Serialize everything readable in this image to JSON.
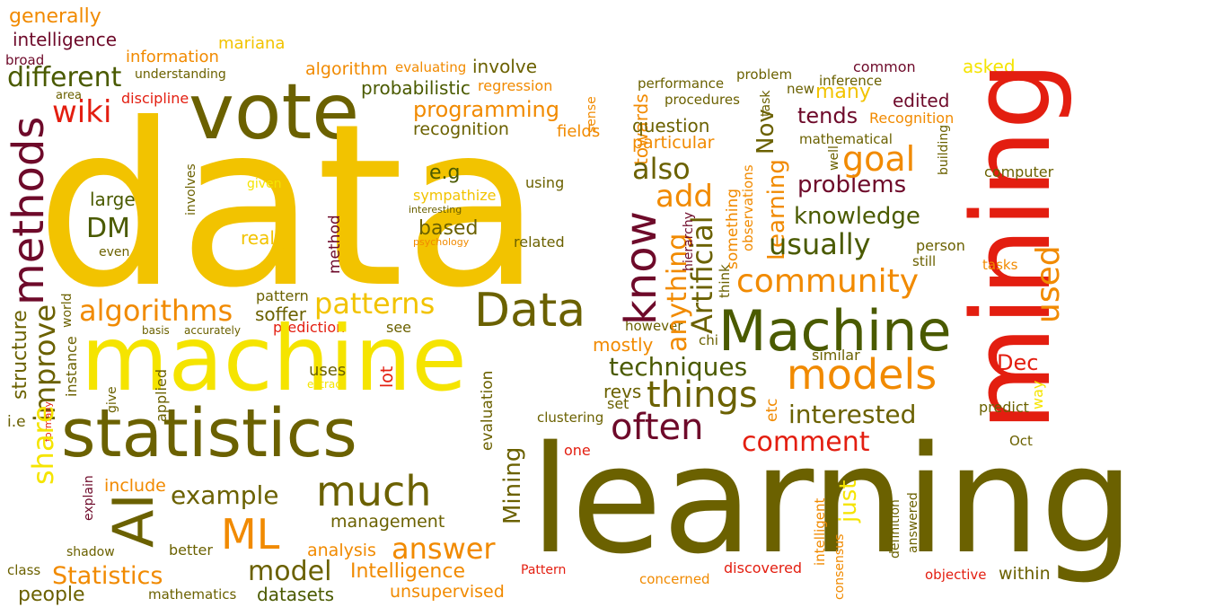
{
  "colors": {
    "gold": "#f2c300",
    "yellow": "#f5e400",
    "olive": "#6b6100",
    "dark_olive": "#4a5a00",
    "orange": "#f18a00",
    "red": "#e31e10",
    "maroon": "#6e0a2a",
    "brown": "#8a5a00"
  },
  "words": [
    {
      "text": "generally"
    },
    {
      "text": "intelligence"
    },
    {
      "text": "broad"
    },
    {
      "text": "different"
    },
    {
      "text": "area"
    },
    {
      "text": "understanding"
    },
    {
      "text": "information"
    },
    {
      "text": "mariana"
    },
    {
      "text": "algorithm"
    },
    {
      "text": "evaluating"
    },
    {
      "text": "involve"
    },
    {
      "text": "regression"
    },
    {
      "text": "probabilistic"
    },
    {
      "text": "discipline"
    },
    {
      "text": "wiki"
    },
    {
      "text": "vote"
    },
    {
      "text": "programming"
    },
    {
      "text": "recognition"
    },
    {
      "text": "fields"
    },
    {
      "text": "sense"
    },
    {
      "text": "methods"
    },
    {
      "text": "data"
    },
    {
      "text": "e.g"
    },
    {
      "text": "given"
    },
    {
      "text": "using"
    },
    {
      "text": "sympathize"
    },
    {
      "text": "interesting"
    },
    {
      "text": "large"
    },
    {
      "text": "involves"
    },
    {
      "text": "DM"
    },
    {
      "text": "even"
    },
    {
      "text": "really"
    },
    {
      "text": "based"
    },
    {
      "text": "psychology"
    },
    {
      "text": "related"
    },
    {
      "text": "method"
    },
    {
      "text": "algorithms"
    },
    {
      "text": "patterns"
    },
    {
      "text": "Data"
    },
    {
      "text": "pattern"
    },
    {
      "text": "soffer"
    },
    {
      "text": "world"
    },
    {
      "text": "basis"
    },
    {
      "text": "accurately"
    },
    {
      "text": "prediction"
    },
    {
      "text": "see"
    },
    {
      "text": "structure"
    },
    {
      "text": "instance"
    },
    {
      "text": "machine"
    },
    {
      "text": "uses"
    },
    {
      "text": "extract"
    },
    {
      "text": "lot"
    },
    {
      "text": "improve"
    },
    {
      "text": "give"
    },
    {
      "text": "applied"
    },
    {
      "text": "formally"
    },
    {
      "text": "statistics"
    },
    {
      "text": "evaluation"
    },
    {
      "text": "i.e"
    },
    {
      "text": "share"
    },
    {
      "text": "include"
    },
    {
      "text": "example"
    },
    {
      "text": "much"
    },
    {
      "text": "AI"
    },
    {
      "text": "explain"
    },
    {
      "text": "ML"
    },
    {
      "text": "management"
    },
    {
      "text": "Mining"
    },
    {
      "text": "better"
    },
    {
      "text": "shadow"
    },
    {
      "text": "analysis"
    },
    {
      "text": "answer"
    },
    {
      "text": "class"
    },
    {
      "text": "Statistics"
    },
    {
      "text": "model"
    },
    {
      "text": "Intelligence"
    },
    {
      "text": "people"
    },
    {
      "text": "mathematics"
    },
    {
      "text": "datasets"
    },
    {
      "text": "unsupervised"
    },
    {
      "text": "Pattern"
    },
    {
      "text": "concerned"
    },
    {
      "text": "discovered"
    },
    {
      "text": "objective"
    },
    {
      "text": "within"
    },
    {
      "text": "learning"
    },
    {
      "text": "one"
    },
    {
      "text": "clustering"
    },
    {
      "text": "set"
    },
    {
      "text": "revs"
    },
    {
      "text": "often"
    },
    {
      "text": "things"
    },
    {
      "text": "techniques"
    },
    {
      "text": "mostly"
    },
    {
      "text": "however"
    },
    {
      "text": "anything"
    },
    {
      "text": "know"
    },
    {
      "text": "towards"
    },
    {
      "text": "also"
    },
    {
      "text": "particular"
    },
    {
      "text": "question"
    },
    {
      "text": "procedures"
    },
    {
      "text": "performance"
    },
    {
      "text": "problem"
    },
    {
      "text": "new"
    },
    {
      "text": "task"
    },
    {
      "text": "Nov"
    },
    {
      "text": "add"
    },
    {
      "text": "Artificial"
    },
    {
      "text": "hierarchy"
    },
    {
      "text": "something"
    },
    {
      "text": "observations"
    },
    {
      "text": "Learning"
    },
    {
      "text": "think"
    },
    {
      "text": "chi"
    },
    {
      "text": "Machine"
    },
    {
      "text": "community"
    },
    {
      "text": "usually"
    },
    {
      "text": "knowledge"
    },
    {
      "text": "problems"
    },
    {
      "text": "goal"
    },
    {
      "text": "tends"
    },
    {
      "text": "mathematical"
    },
    {
      "text": "well"
    },
    {
      "text": "building"
    },
    {
      "text": "inference"
    },
    {
      "text": "common"
    },
    {
      "text": "many"
    },
    {
      "text": "edited"
    },
    {
      "text": "Recognition"
    },
    {
      "text": "asked"
    },
    {
      "text": "mining"
    },
    {
      "text": "computer"
    },
    {
      "text": "person"
    },
    {
      "text": "still"
    },
    {
      "text": "tasks"
    },
    {
      "text": "used"
    },
    {
      "text": "models"
    },
    {
      "text": "interested"
    },
    {
      "text": "comment"
    },
    {
      "text": "etc"
    },
    {
      "text": "similar"
    },
    {
      "text": "Dec"
    },
    {
      "text": "way"
    },
    {
      "text": "predict"
    },
    {
      "text": "Oct"
    },
    {
      "text": "just"
    },
    {
      "text": "intelligent"
    },
    {
      "text": "consensus"
    },
    {
      "text": "definition"
    },
    {
      "text": "answered"
    }
  ]
}
